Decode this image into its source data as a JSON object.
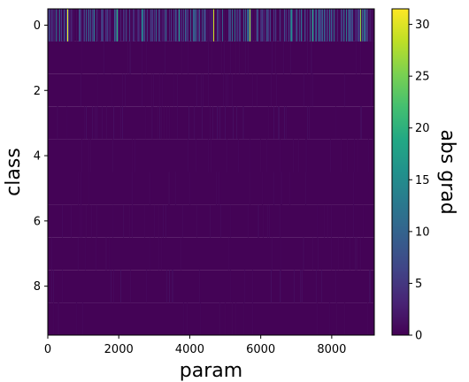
{
  "chart_data": {
    "type": "heatmap",
    "xlabel": "param",
    "ylabel": "class",
    "xlim": [
      0,
      9200
    ],
    "ylim": [
      9.5,
      -0.5
    ],
    "x_ticks": [
      0,
      2000,
      4000,
      6000,
      8000
    ],
    "y_ticks": [
      0,
      2,
      4,
      6,
      8
    ],
    "colormap": "viridis",
    "colorbar": {
      "label": "abs grad",
      "range": [
        0,
        31.5
      ],
      "ticks": [
        0,
        5,
        10,
        15,
        20,
        25,
        30
      ]
    },
    "n_classes": 10,
    "n_params": 9200,
    "background_value": 0.2,
    "row_profiles": [
      {
        "class": 0,
        "level": "high",
        "typical_max": 12,
        "peak": 31
      },
      {
        "class": 1,
        "level": "low",
        "typical_max": 0.8
      },
      {
        "class": 2,
        "level": "low",
        "typical_max": 0.8
      },
      {
        "class": 3,
        "level": "low",
        "typical_max": 1.2
      },
      {
        "class": 4,
        "level": "low",
        "typical_max": 0.6
      },
      {
        "class": 5,
        "level": "low",
        "typical_max": 0.6
      },
      {
        "class": 6,
        "level": "low",
        "typical_max": 0.8
      },
      {
        "class": 7,
        "level": "low",
        "typical_max": 0.6
      },
      {
        "class": 8,
        "level": "low",
        "typical_max": 1.2
      },
      {
        "class": 9,
        "level": "low",
        "typical_max": 0.6
      }
    ],
    "peaks": [
      {
        "class": 0,
        "param": 560,
        "value": 31
      },
      {
        "class": 0,
        "param": 4650,
        "value": 29
      },
      {
        "class": 0,
        "param": 5680,
        "value": 27
      },
      {
        "class": 0,
        "param": 8800,
        "value": 26
      },
      {
        "class": 0,
        "param": 1950,
        "value": 20
      },
      {
        "class": 0,
        "param": 7450,
        "value": 19
      },
      {
        "class": 0,
        "param": 3700,
        "value": 17
      },
      {
        "class": 0,
        "param": 6850,
        "value": 15
      },
      {
        "class": 0,
        "param": 2650,
        "value": 14
      },
      {
        "class": 0,
        "param": 1300,
        "value": 13
      },
      {
        "class": 0,
        "param": 8400,
        "value": 13
      },
      {
        "class": 0,
        "param": 5250,
        "value": 12
      }
    ]
  }
}
